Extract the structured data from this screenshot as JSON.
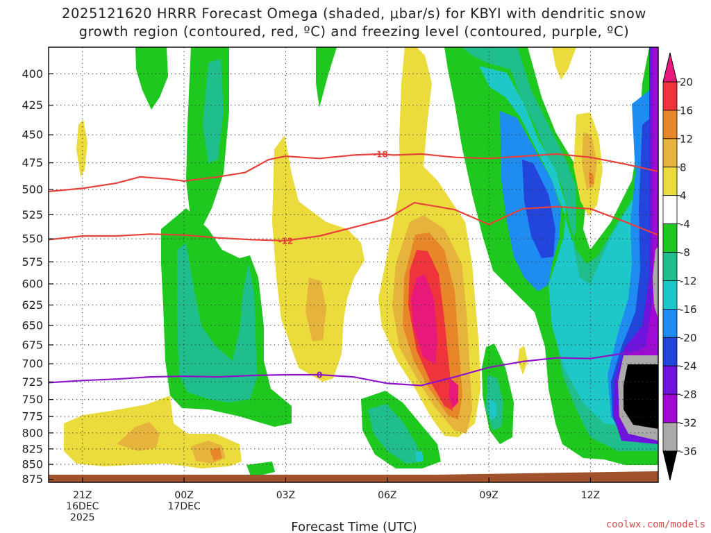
{
  "title_line1": "2025121620 HRRR Forecast Omega (shaded, μbar/s) for KBYI with dendritic snow",
  "title_line2": "growth region (contoured, red, ºC) and freezing level (contoured, purple, ºC)",
  "credit": "coolwx.com/models",
  "chart_data": {
    "type": "heatmap",
    "title": "2025121620 HRRR Forecast Omega (shaded, μbar/s) for KBYI with dendritic snow growth region (contoured, red, ºC) and freezing level (contoured, purple, ºC)",
    "xlabel": "Forecast Time (UTC)",
    "ylabel": "",
    "y_scale": "log-pressure (hPa, inverted)",
    "ylim": [
      880,
      380
    ],
    "grid": true,
    "y_ticks": [
      400,
      425,
      450,
      475,
      500,
      525,
      550,
      575,
      600,
      625,
      650,
      675,
      700,
      725,
      750,
      775,
      800,
      825,
      850,
      875
    ],
    "x_ticks": [
      {
        "hour": 21,
        "lines": [
          "21Z",
          "16DEC",
          "2025"
        ]
      },
      {
        "hour": 24,
        "lines": [
          "00Z",
          "17DEC"
        ]
      },
      {
        "hour": 27,
        "lines": [
          "03Z"
        ]
      },
      {
        "hour": 30,
        "lines": [
          "06Z"
        ]
      },
      {
        "hour": 33,
        "lines": [
          "09Z"
        ]
      },
      {
        "hour": 36,
        "lines": [
          "12Z"
        ]
      }
    ],
    "xlim_hours": [
      20,
      38
    ],
    "colorbar": {
      "label_values": [
        20,
        16,
        12,
        8,
        4,
        -4,
        -8,
        -12,
        -16,
        -20,
        -24,
        -28,
        -32,
        -36
      ],
      "colors_top_to_bottom": [
        "#e8197a",
        "#f0343c",
        "#e8862a",
        "#e6b43c",
        "#ebdb3c",
        "#ffffff",
        "#1ec81e",
        "#1fbe8c",
        "#1ec8c8",
        "#1e8cf0",
        "#2246dc",
        "#6e14dc",
        "#a00ad2",
        "#aaaaaa",
        "#000000"
      ]
    },
    "contours": [
      {
        "color": "#e8403a",
        "label": "-18",
        "points": [
          [
            20,
            502
          ],
          [
            21,
            499
          ],
          [
            22,
            494
          ],
          [
            22.7,
            488
          ],
          [
            23.5,
            490
          ],
          [
            24,
            492
          ],
          [
            25,
            488
          ],
          [
            25.8,
            484
          ],
          [
            26.5,
            472
          ],
          [
            27,
            469
          ],
          [
            28,
            471
          ],
          [
            29,
            468
          ],
          [
            29.8,
            467
          ],
          [
            30.2,
            468
          ],
          [
            31,
            467
          ],
          [
            32,
            470
          ],
          [
            33,
            471
          ],
          [
            34,
            469
          ],
          [
            35,
            467
          ],
          [
            36,
            470
          ],
          [
            37,
            476
          ],
          [
            38,
            483
          ]
        ]
      },
      {
        "color": "#e8403a",
        "label": "-12",
        "points": [
          [
            20,
            551
          ],
          [
            21,
            547
          ],
          [
            22,
            547
          ],
          [
            23,
            545
          ],
          [
            24,
            546
          ],
          [
            25,
            549
          ],
          [
            26,
            551
          ],
          [
            27,
            552
          ],
          [
            28,
            547
          ],
          [
            29,
            538
          ],
          [
            30,
            529
          ],
          [
            30.8,
            513
          ],
          [
            31.5,
            517
          ],
          [
            32,
            520
          ],
          [
            33,
            535
          ],
          [
            34,
            519
          ],
          [
            35,
            517
          ],
          [
            36,
            519
          ],
          [
            37,
            532
          ],
          [
            38,
            546
          ]
        ]
      },
      {
        "color": "#8e14c8",
        "label": "0",
        "points": [
          [
            20,
            726
          ],
          [
            21,
            723
          ],
          [
            22,
            721
          ],
          [
            23,
            718
          ],
          [
            24,
            717
          ],
          [
            25,
            718
          ],
          [
            26,
            716
          ],
          [
            27,
            715
          ],
          [
            28,
            715
          ],
          [
            29,
            718
          ],
          [
            30,
            727
          ],
          [
            31,
            730
          ],
          [
            32,
            718
          ],
          [
            33,
            705
          ],
          [
            34,
            697
          ],
          [
            35,
            692
          ],
          [
            36,
            693
          ],
          [
            37,
            686
          ],
          [
            38,
            680
          ]
        ]
      }
    ],
    "terrain_color": "#a0522d"
  }
}
